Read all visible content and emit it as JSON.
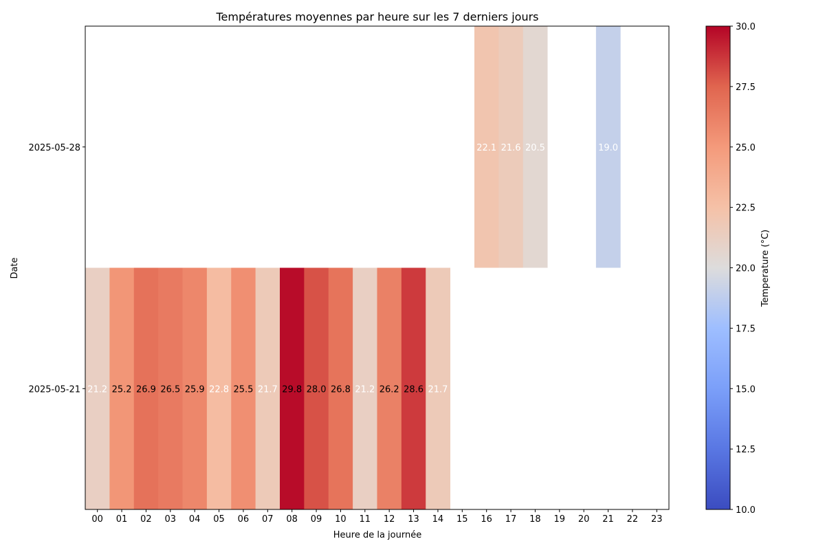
{
  "chart_data": {
    "type": "heatmap",
    "title": "Températures moyennes par heure sur les 7 derniers jours",
    "xlabel": "Heure de la journée",
    "ylabel": "Date",
    "x": [
      "00",
      "01",
      "02",
      "03",
      "04",
      "05",
      "06",
      "07",
      "08",
      "09",
      "10",
      "11",
      "12",
      "13",
      "14",
      "15",
      "16",
      "17",
      "18",
      "19",
      "20",
      "21",
      "22",
      "23"
    ],
    "y": [
      "2025-05-28",
      "2025-05-21"
    ],
    "values": [
      [
        null,
        null,
        null,
        null,
        null,
        null,
        null,
        null,
        null,
        null,
        null,
        null,
        null,
        null,
        null,
        null,
        22.1,
        21.6,
        20.5,
        null,
        null,
        19.0,
        null,
        null
      ],
      [
        21.2,
        25.2,
        26.9,
        26.5,
        25.9,
        22.8,
        25.5,
        21.7,
        29.8,
        28.0,
        26.8,
        21.2,
        26.2,
        28.6,
        21.7,
        null,
        null,
        null,
        null,
        null,
        null,
        null,
        null,
        null
      ]
    ],
    "colorscale": "coolwarm",
    "colorbar": {
      "label": "Temperature (°C)",
      "range": [
        10.0,
        30.0
      ],
      "ticks": [
        "10.0",
        "12.5",
        "15.0",
        "17.5",
        "20.0",
        "22.5",
        "25.0",
        "27.5",
        "30.0"
      ]
    },
    "annotations": "cell values shown with one decimal",
    "grid": false
  }
}
